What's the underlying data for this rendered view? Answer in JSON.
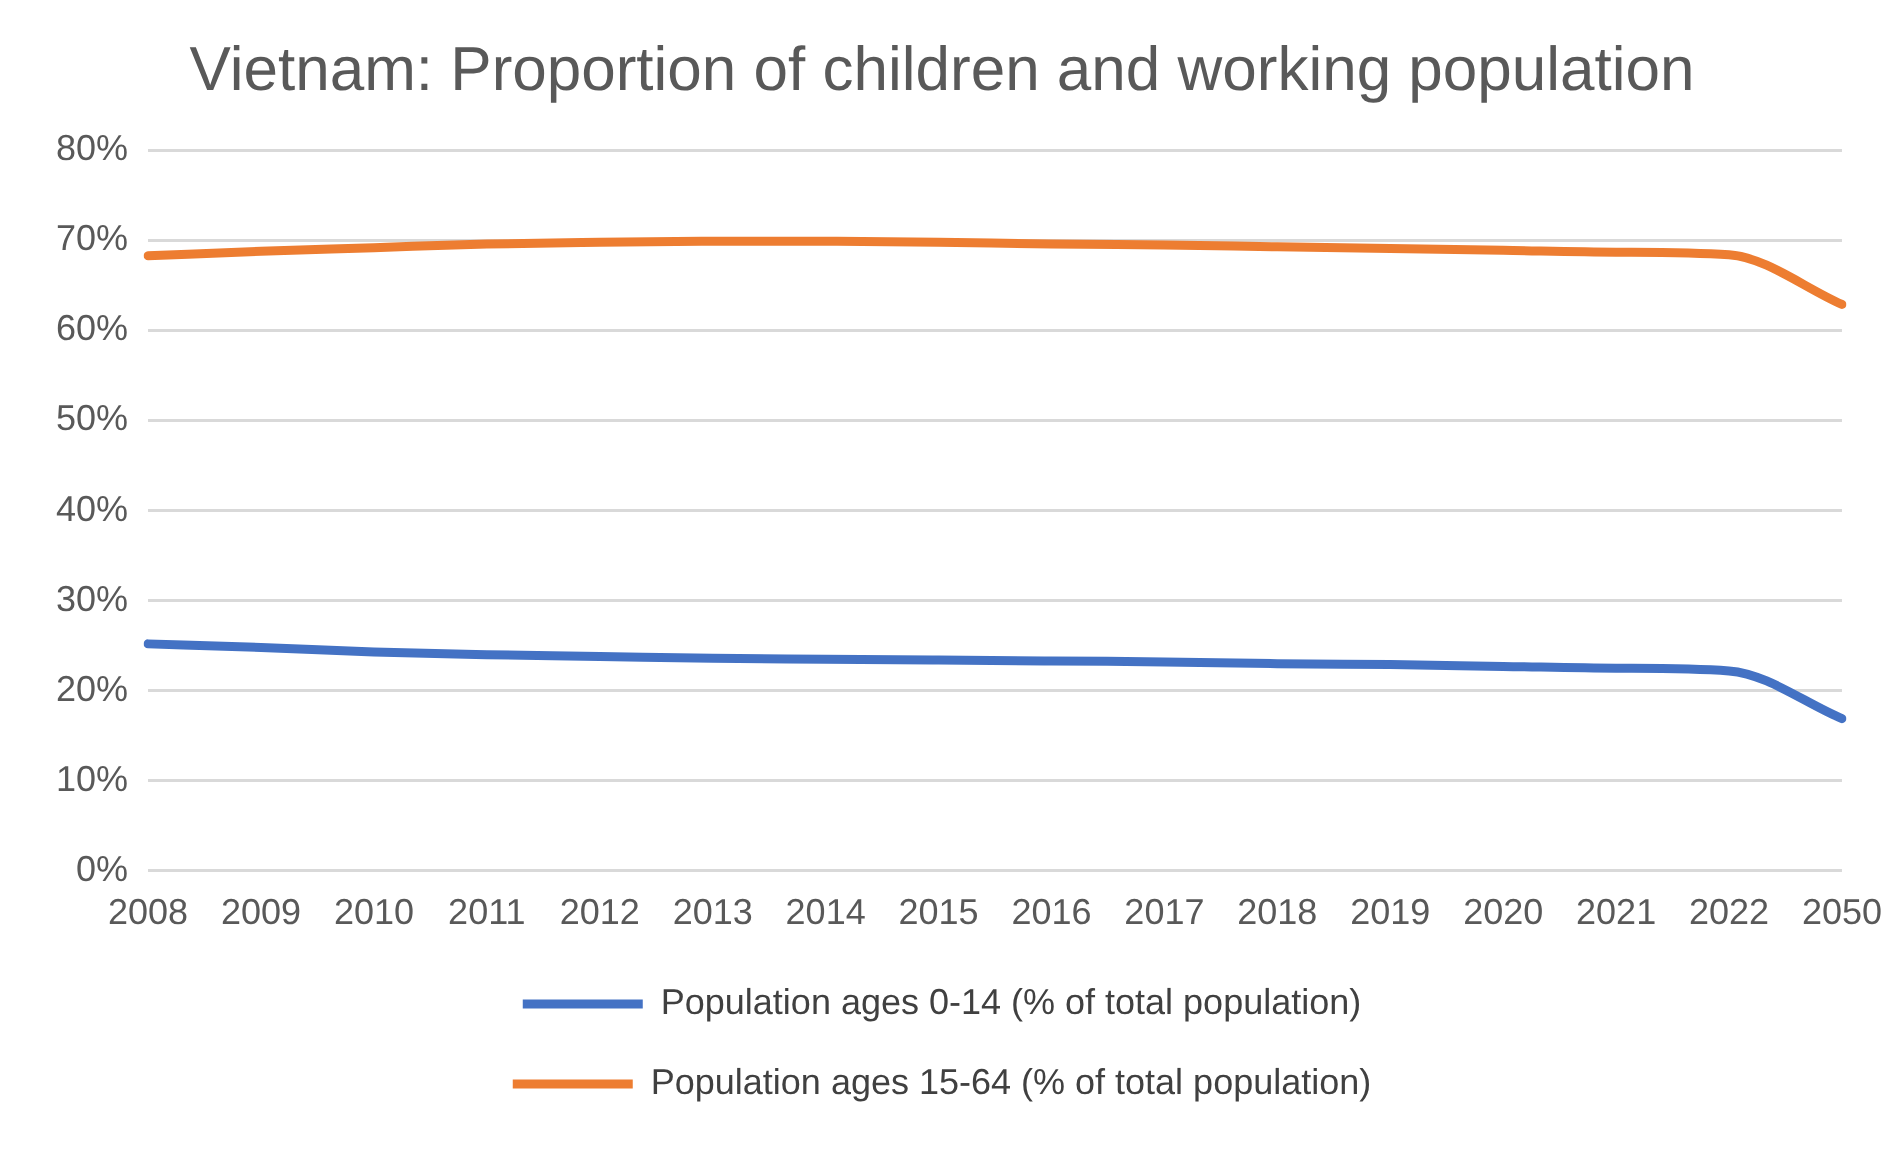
{
  "chart_data": {
    "type": "line",
    "title": "Vietnam: Proportion of children and working population",
    "categories": [
      "2008",
      "2009",
      "2010",
      "2011",
      "2012",
      "2013",
      "2014",
      "2015",
      "2016",
      "2017",
      "2018",
      "2019",
      "2020",
      "2021",
      "2022",
      "2050"
    ],
    "series": [
      {
        "name": "Population ages 0-14 (% of total population)",
        "color": "#4472c4",
        "values": [
          25.2,
          24.8,
          24.3,
          24.0,
          23.8,
          23.6,
          23.5,
          23.4,
          23.3,
          23.2,
          23.0,
          22.9,
          22.7,
          22.5,
          22.2,
          16.9
        ]
      },
      {
        "name": "Population ages 15-64 (% of total population)",
        "color": "#ed7d31",
        "values": [
          68.3,
          68.8,
          69.2,
          69.6,
          69.8,
          69.9,
          69.9,
          69.8,
          69.6,
          69.5,
          69.3,
          69.1,
          68.9,
          68.7,
          68.4,
          62.9
        ]
      }
    ],
    "ylim": [
      0,
      80
    ],
    "yticks": [
      {
        "value": 0,
        "label": "0%"
      },
      {
        "value": 10,
        "label": "10%"
      },
      {
        "value": 20,
        "label": "20%"
      },
      {
        "value": 30,
        "label": "30%"
      },
      {
        "value": 40,
        "label": "40%"
      },
      {
        "value": 50,
        "label": "50%"
      },
      {
        "value": 60,
        "label": "60%"
      },
      {
        "value": 70,
        "label": "70%"
      },
      {
        "value": 80,
        "label": "80%"
      }
    ],
    "grid": "y",
    "legend": "bottom",
    "marker": "none",
    "line_style": "solid"
  }
}
